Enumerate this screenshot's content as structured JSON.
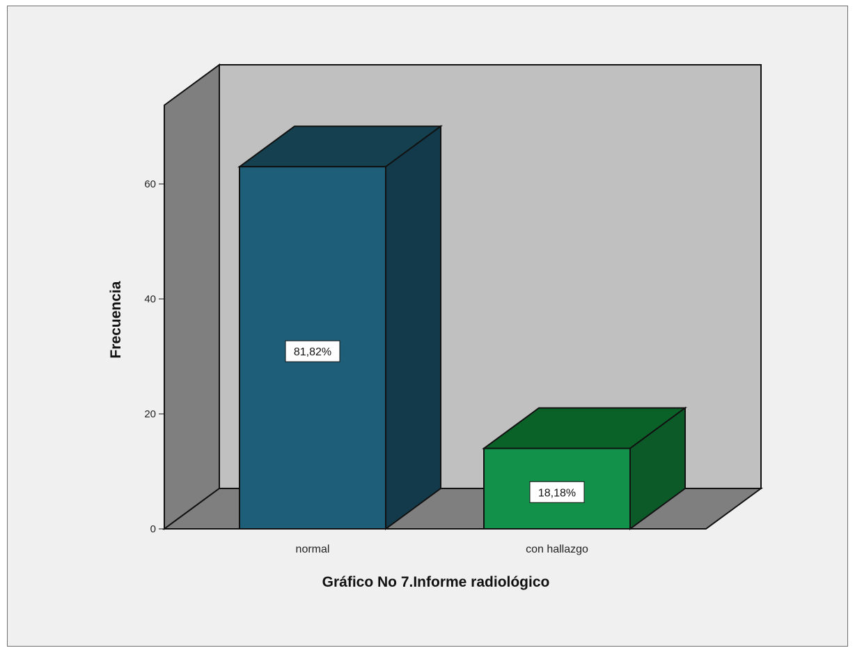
{
  "chart_data": {
    "type": "bar",
    "categories": [
      "normal",
      "con hallazgo"
    ],
    "values": [
      63,
      14
    ],
    "data_labels": [
      "81,82%",
      "18,18%"
    ],
    "xlabel": "Gráfico No 7.Informe radiológico",
    "ylabel": "Frecuencia",
    "yticks": [
      "0",
      "20",
      "40",
      "60"
    ],
    "ylim": [
      0,
      70
    ],
    "three_d": true,
    "colors": {
      "bar_front": [
        "#1e5e78",
        "#12914a"
      ],
      "bar_top": [
        "#15404f",
        "#0a6228"
      ],
      "bar_side": [
        "#123a4b",
        "#0b5a28"
      ],
      "back_wall": "#c0c0c0",
      "side_wall": "#7f7f7f",
      "floor": "#7f7f7f",
      "background": "#f0f0f0"
    }
  }
}
